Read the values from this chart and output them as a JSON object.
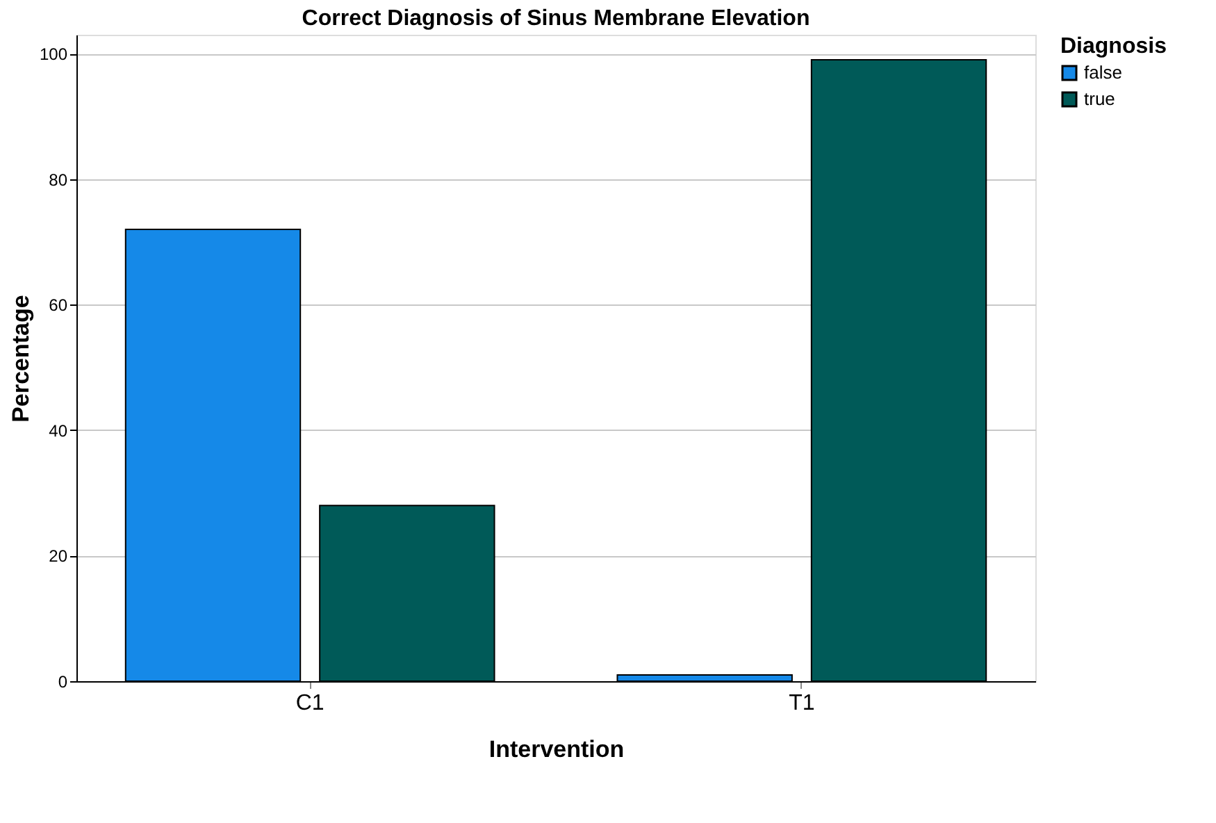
{
  "chart_data": {
    "type": "bar",
    "title": "Correct Diagnosis of Sinus Membrane Elevation",
    "xlabel": "Intervention",
    "ylabel": "Percentage",
    "legend_title": "Diagnosis",
    "categories": [
      "C1",
      "T1"
    ],
    "series": [
      {
        "name": "false",
        "color": "#1589e8",
        "values": [
          72,
          1
        ]
      },
      {
        "name": "true",
        "color": "#005a58",
        "values": [
          28,
          99
        ]
      }
    ],
    "ylim": [
      0,
      103
    ],
    "yticks": [
      0,
      20,
      40,
      60,
      80,
      100
    ],
    "grid": "y",
    "legend": "top right"
  }
}
